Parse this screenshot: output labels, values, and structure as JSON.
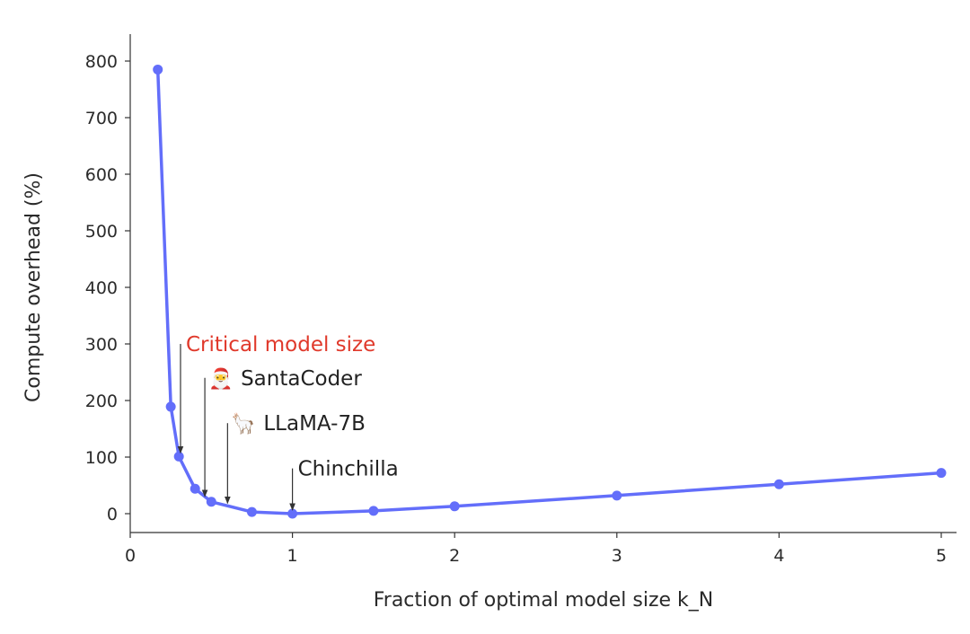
{
  "chart_data": {
    "type": "line",
    "title": "",
    "xlabel": "Fraction of optimal model size k_N",
    "ylabel": "Compute overhead (%)",
    "xlim": [
      0,
      5.1
    ],
    "ylim": [
      -35,
      855
    ],
    "x_ticks": [
      0,
      1,
      2,
      3,
      4,
      5
    ],
    "y_ticks": [
      0,
      100,
      200,
      300,
      400,
      500,
      600,
      700,
      800
    ],
    "grid": false,
    "legend": "none",
    "series": [
      {
        "color": "#636efa",
        "points": [
          {
            "x": 0.17,
            "y": 785
          },
          {
            "x": 0.25,
            "y": 189
          },
          {
            "x": 0.3,
            "y": 101
          },
          {
            "x": 0.4,
            "y": 44
          },
          {
            "x": 0.5,
            "y": 21
          },
          {
            "x": 0.75,
            "y": 3
          },
          {
            "x": 1.0,
            "y": 0
          },
          {
            "x": 1.5,
            "y": 5
          },
          {
            "x": 2.0,
            "y": 13
          },
          {
            "x": 3.0,
            "y": 32
          },
          {
            "x": 4.0,
            "y": 52
          },
          {
            "x": 5.0,
            "y": 72
          }
        ]
      }
    ],
    "annotations": [
      {
        "name": "critical-model-size",
        "text": "Critical model size",
        "emoji": "",
        "color": "#e0392b",
        "x": 0.31,
        "y": 101,
        "label_y": 300
      },
      {
        "name": "santacoder",
        "text": "SantaCoder",
        "emoji": "🎅",
        "color": "#222222",
        "x": 0.46,
        "y": 24,
        "label_y": 240
      },
      {
        "name": "llama-7b",
        "text": "LLaMA-7B",
        "emoji": "🦙",
        "color": "#222222",
        "x": 0.6,
        "y": 12,
        "label_y": 160
      },
      {
        "name": "chinchilla",
        "text": "Chinchilla",
        "emoji": "",
        "color": "#222222",
        "x": 1.0,
        "y": 0,
        "label_y": 80
      }
    ]
  }
}
